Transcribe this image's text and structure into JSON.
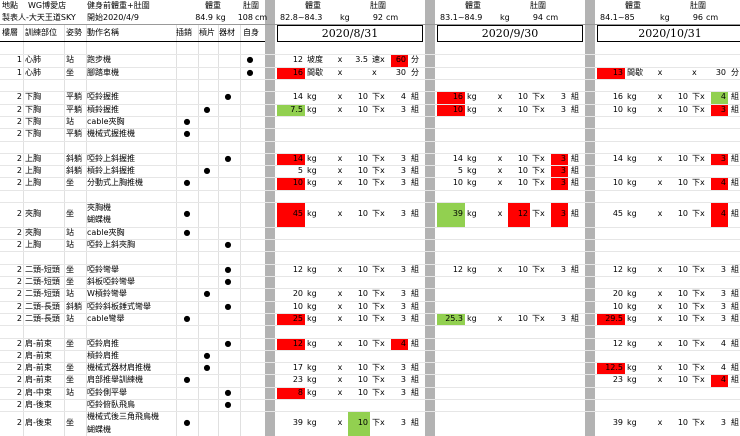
{
  "header": {
    "location_label": "地點",
    "location": "WG博愛店",
    "author": "製表人-大天王道SKY",
    "baseline_label": "健身前體重+肚圍",
    "start": "開始2020/4/9",
    "weight_label": "體重",
    "waist_label": "肚圍",
    "weight": 84.9,
    "weight_unit": "kg",
    "waist": 108,
    "waist_unit": "cm"
  },
  "columns": [
    "樓層",
    "訓練部位",
    "姿勢",
    "動作名稱",
    "插銷",
    "槓片",
    "器材",
    "自身"
  ],
  "sessions": [
    {
      "date": "2020/8/31",
      "weight_label": "體重",
      "waist_label": "肚圍",
      "weight_range": "82.8~84.3",
      "weight_unit": "kg",
      "waist": 92,
      "waist_unit": "cm"
    },
    {
      "date": "2020/9/30",
      "weight_label": "體重",
      "waist_label": "肚圍",
      "weight_range": "83.1~84.9",
      "weight_unit": "kg",
      "waist": 94,
      "waist_unit": "cm"
    },
    {
      "date": "2020/10/31",
      "weight_label": "體重",
      "waist_label": "肚圍",
      "weight_range": "84.1~85",
      "weight_unit": "kg",
      "waist": 96,
      "waist_unit": "cm"
    }
  ],
  "groups": [
    [
      {
        "level": 1,
        "part": "心肺",
        "pose": "站",
        "action": "跑步機",
        "equipment": [
          null,
          null,
          null,
          "●"
        ],
        "logs": [
          {
            "weight": 12,
            "weight_unit": "坡度",
            "x": "x",
            "reps": 3.5,
            "reps_unit": "速x",
            "sets": 60,
            "sets_unit": "分",
            "highlight": {
              "sets": "#ff0000"
            }
          },
          null,
          null
        ]
      },
      {
        "level": 1,
        "part": "心肺",
        "pose": "坐",
        "action": "腳踏車機",
        "equipment": [
          null,
          null,
          null,
          "●"
        ],
        "logs": [
          {
            "weight": 16,
            "weight_unit": "間歇",
            "x": "x",
            "reps_unit": "x",
            "sets": 30,
            "sets_unit": "分",
            "highlight": {
              "weight": "#ff0000"
            }
          },
          null,
          {
            "weight": 13,
            "weight_unit": "間歇",
            "x": "x",
            "reps_unit": "x",
            "sets": 30,
            "sets_unit": "分",
            "highlight": {
              "weight": "#ff0000"
            }
          }
        ]
      }
    ],
    [
      {
        "level": 2,
        "part": "下胸",
        "pose": "平躺",
        "action": "啞鈴握推",
        "equipment": [
          null,
          null,
          "●",
          null
        ],
        "logs": [
          {
            "weight": 14,
            "weight_unit": "kg",
            "x": "x",
            "reps": 10,
            "reps_unit": "下x",
            "sets": 4,
            "sets_unit": "組"
          },
          {
            "weight": 16,
            "weight_unit": "kg",
            "x": "x",
            "reps": 10,
            "reps_unit": "下x",
            "sets": 3,
            "sets_unit": "組",
            "highlight": {
              "weight": "#ff0000"
            }
          },
          {
            "weight": 16,
            "weight_unit": "kg",
            "x": "x",
            "reps": 10,
            "reps_unit": "下x",
            "sets": 4,
            "sets_unit": "組",
            "highlight": {
              "sets": "#92d050"
            }
          }
        ]
      },
      {
        "level": 2,
        "part": "下胸",
        "pose": "平躺",
        "action": "槓鈴握推",
        "equipment": [
          null,
          "●",
          null,
          null
        ],
        "logs": [
          {
            "weight": 7.5,
            "weight_unit": "kg",
            "x": "x",
            "reps": 10,
            "reps_unit": "下x",
            "sets": 3,
            "sets_unit": "組",
            "highlight": {
              "weight": "#92d050"
            }
          },
          {
            "weight": 10,
            "weight_unit": "kg",
            "x": "x",
            "reps": 10,
            "reps_unit": "下x",
            "sets": 3,
            "sets_unit": "組",
            "highlight": {
              "weight": "#ff0000"
            }
          },
          {
            "weight": 10,
            "weight_unit": "kg",
            "x": "x",
            "reps": 10,
            "reps_unit": "下x",
            "sets": 3,
            "sets_unit": "組",
            "highlight": {
              "sets": "#ff0000"
            }
          }
        ]
      },
      {
        "level": 2,
        "part": "下胸",
        "pose": "站",
        "action": "cable夾胸",
        "equipment": [
          "●",
          null,
          null,
          null
        ],
        "logs": [
          null,
          null,
          null
        ]
      },
      {
        "level": 2,
        "part": "下胸",
        "pose": "平躺",
        "action": "機械式握推機",
        "equipment": [
          "●",
          null,
          null,
          null
        ],
        "logs": [
          null,
          null,
          null
        ]
      }
    ],
    [
      {
        "level": 2,
        "part": "上胸",
        "pose": "斜躺",
        "action": "啞鈴上斜握推",
        "equipment": [
          null,
          null,
          "●",
          null
        ],
        "logs": [
          {
            "weight": 14,
            "weight_unit": "kg",
            "x": "x",
            "reps": 10,
            "reps_unit": "下x",
            "sets": 3,
            "sets_unit": "組",
            "highlight": {
              "weight": "#ff0000"
            }
          },
          {
            "weight": 14,
            "weight_unit": "kg",
            "x": "x",
            "reps": 10,
            "reps_unit": "下x",
            "sets": 3,
            "sets_unit": "組",
            "highlight": {
              "sets": "#ff0000"
            }
          },
          {
            "weight": 14,
            "weight_unit": "kg",
            "x": "x",
            "reps": 10,
            "reps_unit": "下x",
            "sets": 3,
            "sets_unit": "組",
            "highlight": {
              "sets": "#ff0000"
            }
          }
        ]
      },
      {
        "level": 2,
        "part": "上胸",
        "pose": "斜躺",
        "action": "槓鈴上斜握推",
        "equipment": [
          null,
          "●",
          null,
          null
        ],
        "logs": [
          {
            "weight": 5,
            "weight_unit": "kg",
            "x": "x",
            "reps": 10,
            "reps_unit": "下x",
            "sets": 3,
            "sets_unit": "組"
          },
          {
            "weight": 5,
            "weight_unit": "kg",
            "x": "x",
            "reps": 10,
            "reps_unit": "下x",
            "sets": 3,
            "sets_unit": "組",
            "highlight": {
              "sets": "#ff0000"
            }
          },
          null
        ]
      },
      {
        "level": 2,
        "part": "上胸",
        "pose": "坐",
        "action": "分動式上胸推機",
        "equipment": [
          "●",
          null,
          null,
          null
        ],
        "logs": [
          {
            "weight": 10,
            "weight_unit": "kg",
            "x": "x",
            "reps": 10,
            "reps_unit": "下x",
            "sets": 3,
            "sets_unit": "組",
            "highlight": {
              "weight": "#ff0000"
            }
          },
          {
            "weight": 10,
            "weight_unit": "kg",
            "x": "x",
            "reps": 10,
            "reps_unit": "下x",
            "sets": 3,
            "sets_unit": "組",
            "highlight": {
              "sets": "#ff0000"
            }
          },
          {
            "weight": 10,
            "weight_unit": "kg",
            "x": "x",
            "reps": 10,
            "reps_unit": "下x",
            "sets": 4,
            "sets_unit": "組",
            "highlight": {
              "sets": "#ff0000"
            }
          }
        ]
      }
    ],
    [
      {
        "level": 2,
        "part": "夾胸",
        "pose": "坐",
        "action": [
          "夾胸機",
          "蝴蝶機"
        ],
        "equipment": [
          "●",
          null,
          null,
          null
        ],
        "logs": [
          {
            "weight": 45,
            "weight_unit": "kg",
            "x": "x",
            "reps": 10,
            "reps_unit": "下x",
            "sets": 3,
            "sets_unit": "組",
            "highlight": {
              "weight": "#ff0000"
            }
          },
          {
            "weight": 39,
            "weight_unit": "kg",
            "x": "x",
            "reps": 12,
            "reps_unit": "下x",
            "sets": 3,
            "sets_unit": "組",
            "highlight": {
              "weight": "#92d050",
              "reps": "#ff0000",
              "sets": "#ff0000"
            }
          },
          {
            "weight": 45,
            "weight_unit": "kg",
            "x": "x",
            "reps": 10,
            "reps_unit": "下x",
            "sets": 4,
            "sets_unit": "組",
            "highlight": {
              "sets": "#ff0000"
            }
          }
        ]
      },
      {
        "level": 2,
        "part": "夾胸",
        "pose": "站",
        "action": "cable夾胸",
        "equipment": [
          "●",
          null,
          null,
          null
        ],
        "logs": [
          null,
          null,
          null
        ]
      },
      {
        "level": 2,
        "part": "上胸",
        "pose": "站",
        "action": "啞鈴上斜夾胸",
        "equipment": [
          null,
          null,
          "●",
          null
        ],
        "logs": [
          null,
          null,
          null
        ]
      }
    ],
    [
      {
        "level": 2,
        "part": "二頭-短頭",
        "pose": "坐",
        "action": "啞鈴彎舉",
        "equipment": [
          null,
          null,
          "●",
          null
        ],
        "logs": [
          {
            "weight": 12,
            "weight_unit": "kg",
            "x": "x",
            "reps": 10,
            "reps_unit": "下x",
            "sets": 3,
            "sets_unit": "組"
          },
          {
            "weight": 12,
            "weight_unit": "kg",
            "x": "x",
            "reps": 10,
            "reps_unit": "下x",
            "sets": 3,
            "sets_unit": "組"
          },
          {
            "weight": 12,
            "weight_unit": "kg",
            "x": "x",
            "reps": 10,
            "reps_unit": "下x",
            "sets": 3,
            "sets_unit": "組"
          }
        ]
      },
      {
        "level": 2,
        "part": "二頭-短頭",
        "pose": "坐",
        "action": "斜板啞鈴彎舉",
        "equipment": [
          null,
          null,
          "●",
          null
        ],
        "logs": [
          null,
          null,
          null
        ]
      },
      {
        "level": 2,
        "part": "二頭-短頭",
        "pose": "站",
        "action": "W槓鈴彎舉",
        "equipment": [
          null,
          "●",
          null,
          null
        ],
        "logs": [
          {
            "weight": 20,
            "weight_unit": "kg",
            "x": "x",
            "reps": 10,
            "reps_unit": "下x",
            "sets": 3,
            "sets_unit": "組"
          },
          null,
          {
            "weight": 20,
            "weight_unit": "kg",
            "x": "x",
            "reps": 10,
            "reps_unit": "下x",
            "sets": 3,
            "sets_unit": "組"
          }
        ]
      },
      {
        "level": 2,
        "part": "二頭-長頭",
        "pose": "斜躺",
        "action": "啞鈴斜板錘式彎舉",
        "equipment": [
          null,
          null,
          "●",
          null
        ],
        "logs": [
          {
            "weight": 10,
            "weight_unit": "kg",
            "x": "x",
            "reps": 10,
            "reps_unit": "下x",
            "sets": 3,
            "sets_unit": "組"
          },
          null,
          {
            "weight": 10,
            "weight_unit": "kg",
            "x": "x",
            "reps": 10,
            "reps_unit": "下x",
            "sets": 3,
            "sets_unit": "組"
          }
        ]
      },
      {
        "level": 2,
        "part": "二頭-長頭",
        "pose": "站",
        "action": "cable彎舉",
        "equipment": [
          "●",
          null,
          null,
          null
        ],
        "logs": [
          {
            "weight": 25,
            "weight_unit": "kg",
            "x": "x",
            "reps": 10,
            "reps_unit": "下x",
            "sets": 3,
            "sets_unit": "組",
            "highlight": {
              "weight": "#ff0000"
            }
          },
          {
            "weight": 25.3,
            "weight_unit": "kg",
            "x": "x",
            "reps": 10,
            "reps_unit": "下x",
            "sets": 3,
            "sets_unit": "組",
            "highlight": {
              "weight": "#92d050"
            }
          },
          {
            "weight": 29.5,
            "weight_unit": "kg",
            "x": "x",
            "reps": 10,
            "reps_unit": "下x",
            "sets": 3,
            "sets_unit": "組",
            "highlight": {
              "weight": "#ff0000"
            }
          }
        ]
      }
    ],
    [
      {
        "level": 2,
        "part": "肩-前束",
        "pose": "坐",
        "action": "啞鈴肩推",
        "equipment": [
          null,
          null,
          "●",
          null
        ],
        "logs": [
          {
            "weight": 12,
            "weight_unit": "kg",
            "x": "x",
            "reps": 10,
            "reps_unit": "下x",
            "sets": 4,
            "sets_unit": "組",
            "highlight": {
              "weight": "#ff0000",
              "sets": "#ff0000"
            }
          },
          null,
          {
            "weight": 12,
            "weight_unit": "kg",
            "x": "x",
            "reps": 10,
            "reps_unit": "下x",
            "sets": 4,
            "sets_unit": "組"
          }
        ]
      },
      {
        "level": 2,
        "part": "肩-前束",
        "action": "槓鈴肩推",
        "equipment": [
          null,
          "●",
          null,
          null
        ],
        "logs": [
          null,
          null,
          null
        ]
      },
      {
        "level": 2,
        "part": "肩-前束",
        "pose": "坐",
        "action": "機械式器材肩推機",
        "equipment": [
          null,
          "●",
          null,
          null
        ],
        "logs": [
          {
            "weight": 17,
            "weight_unit": "kg",
            "x": "x",
            "reps": 10,
            "reps_unit": "下x",
            "sets": 3,
            "sets_unit": "組"
          },
          null,
          {
            "weight": 12.5,
            "weight_unit": "kg",
            "x": "x",
            "reps": 10,
            "reps_unit": "下x",
            "sets": 4,
            "sets_unit": "組",
            "highlight": {
              "weight": "#ff0000"
            }
          }
        ]
      },
      {
        "level": 2,
        "part": "肩-前束",
        "pose": "坐",
        "action": "肩部推舉訓練機",
        "equipment": [
          "●",
          null,
          null,
          null
        ],
        "logs": [
          {
            "weight": 23,
            "weight_unit": "kg",
            "x": "x",
            "reps": 10,
            "reps_unit": "下x",
            "sets": 3,
            "sets_unit": "組"
          },
          null,
          {
            "weight": 23,
            "weight_unit": "kg",
            "x": "x",
            "reps": 10,
            "reps_unit": "下x",
            "sets": 4,
            "sets_unit": "組",
            "highlight": {
              "sets": "#ff0000"
            }
          }
        ]
      },
      {
        "level": 2,
        "part": "肩-中束",
        "pose": "站",
        "action": "啞鈴側平舉",
        "equipment": [
          null,
          null,
          "●",
          null
        ],
        "logs": [
          {
            "weight": 8,
            "weight_unit": "kg",
            "x": "x",
            "reps": 10,
            "reps_unit": "下x",
            "sets": 3,
            "sets_unit": "組",
            "highlight": {
              "weight": "#ff0000"
            }
          },
          null,
          null
        ]
      },
      {
        "level": 2,
        "part": "肩-後束",
        "action": "啞鈴俯臥飛鳥",
        "equipment": [
          null,
          null,
          "●",
          null
        ],
        "logs": [
          null,
          null,
          null
        ]
      },
      {
        "level": 2,
        "part": "肩-後束",
        "pose": "坐",
        "action": [
          "機械式後三角飛鳥機",
          "蝴蝶機"
        ],
        "equipment": [
          "●",
          null,
          null,
          null
        ],
        "logs": [
          {
            "weight": 39,
            "weight_unit": "kg",
            "x": "x",
            "reps": 10,
            "reps_unit": "下x",
            "sets": 3,
            "sets_unit": "組",
            "highlight": {
              "reps": "#92d050"
            }
          },
          null,
          {
            "weight": 39,
            "weight_unit": "kg",
            "x": "x",
            "reps": 10,
            "reps_unit": "下x",
            "sets": 3,
            "sets_unit": "組"
          }
        ]
      }
    ]
  ]
}
